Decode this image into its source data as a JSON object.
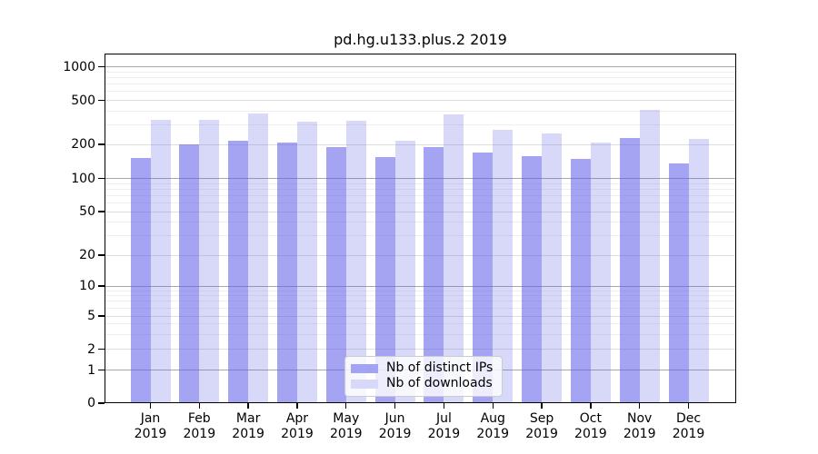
{
  "chart_data": {
    "type": "bar",
    "title": "pd.hg.u133.plus.2 2019",
    "categories": [
      "Jan 2019",
      "Feb 2019",
      "Mar 2019",
      "Apr 2019",
      "May 2019",
      "Jun 2019",
      "Jul 2019",
      "Aug 2019",
      "Sep 2019",
      "Oct 2019",
      "Nov 2019",
      "Dec 2019"
    ],
    "series": [
      {
        "name": "Nb of distinct IPs",
        "values": [
          152,
          200,
          215,
          207,
          190,
          155,
          190,
          170,
          157,
          148,
          228,
          135
        ],
        "fill": "rgba(92,92,232,0.56)",
        "swatch_color": "#a3a3f3"
      },
      {
        "name": "Nb of downloads",
        "values": [
          330,
          333,
          380,
          323,
          327,
          215,
          370,
          270,
          250,
          207,
          407,
          224
        ],
        "fill": "rgba(92,92,232,0.24)",
        "swatch_color": "#d8d8f9"
      }
    ],
    "y_ticks": [
      0,
      1,
      2,
      5,
      10,
      20,
      50,
      100,
      200,
      500,
      1000
    ],
    "y_minor_gridlines": [
      3,
      4,
      6,
      7,
      8,
      9,
      30,
      40,
      60,
      70,
      80,
      90,
      300,
      400,
      600,
      700,
      800,
      900
    ],
    "yscale": "log above 1, linear 0-1",
    "ylim": [
      0,
      1300
    ],
    "grid": true,
    "legend_position": "lower center"
  },
  "colors": {
    "background": "#ffffff",
    "axis": "#000000",
    "grid_power10": "#a8a8a8",
    "grid_labeled": "#dedede",
    "grid_minor": "#efefef",
    "legend_border": "#cccccc",
    "text": "#000000"
  }
}
